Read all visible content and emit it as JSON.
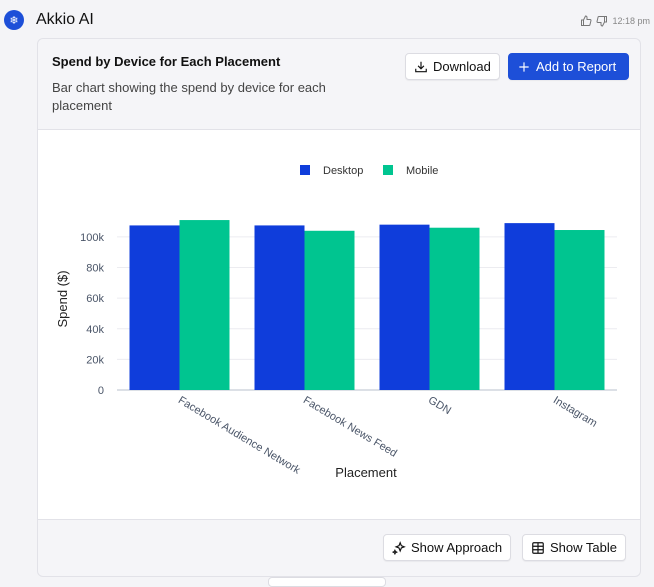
{
  "header": {
    "name": "Akkio AI",
    "time": "12:18 pm",
    "avatar_icon": "snowflake-icon"
  },
  "card": {
    "title": "Spend by Device for Each Placement",
    "description": "Bar chart showing the spend by device for each placement",
    "download_label": "Download",
    "add_report_label": "Add to Report",
    "show_approach_label": "Show Approach",
    "show_table_label": "Show Table"
  },
  "chart_data": {
    "type": "bar",
    "categories": [
      "Facebook Audience Network",
      "Facebook News Feed",
      "GDN",
      "Instagram"
    ],
    "series": [
      {
        "name": "Desktop",
        "color": "#0f3ddb",
        "values": [
          107500,
          107500,
          108000,
          109000
        ]
      },
      {
        "name": "Mobile",
        "color": "#00c590",
        "values": [
          111000,
          104000,
          106000,
          104500
        ]
      }
    ],
    "xlabel": "Placement",
    "ylabel": "Spend ($)",
    "yticks": [
      0,
      20000,
      40000,
      60000,
      80000,
      100000
    ],
    "ytick_labels": [
      "0",
      "20k",
      "40k",
      "60k",
      "80k",
      "100k"
    ],
    "ylim": [
      0,
      113000
    ],
    "grid": true,
    "legend": "top-center"
  }
}
